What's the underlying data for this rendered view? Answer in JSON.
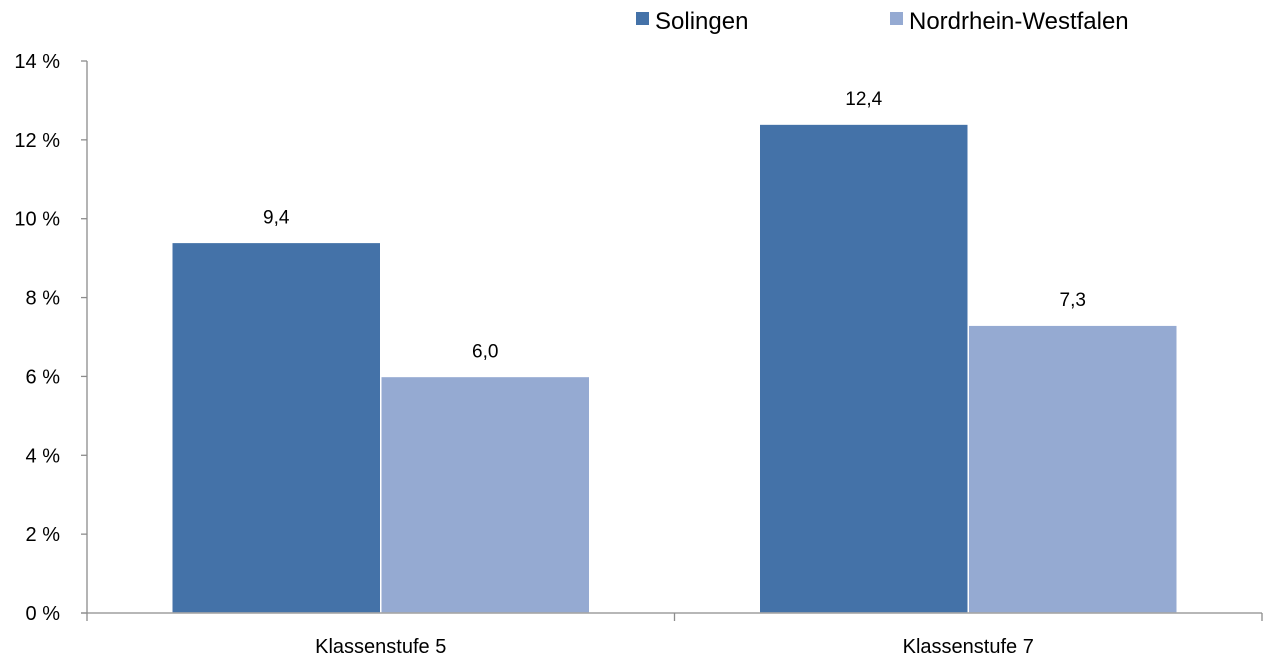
{
  "chart_data": {
    "type": "bar",
    "categories": [
      "Klassenstufe 5",
      "Klassenstufe 7"
    ],
    "series": [
      {
        "name": "Solingen",
        "values": [
          9.4,
          12.4
        ],
        "labels": [
          "9,4",
          "12,4"
        ],
        "color": "#4472a8"
      },
      {
        "name": "Nordrhein-Westfalen",
        "values": [
          6.0,
          7.3
        ],
        "labels": [
          "6,0",
          "7,3"
        ],
        "color": "#95aad2"
      }
    ],
    "ylim": [
      0,
      14
    ],
    "yticks": [
      0,
      2,
      4,
      6,
      8,
      10,
      12,
      14
    ],
    "ytick_labels": [
      "0 %",
      "2 %",
      "4 %",
      "6 %",
      "8 %",
      "10 %",
      "12 %",
      "14 %"
    ],
    "legend": {
      "position": "top-right"
    },
    "grid": false
  }
}
